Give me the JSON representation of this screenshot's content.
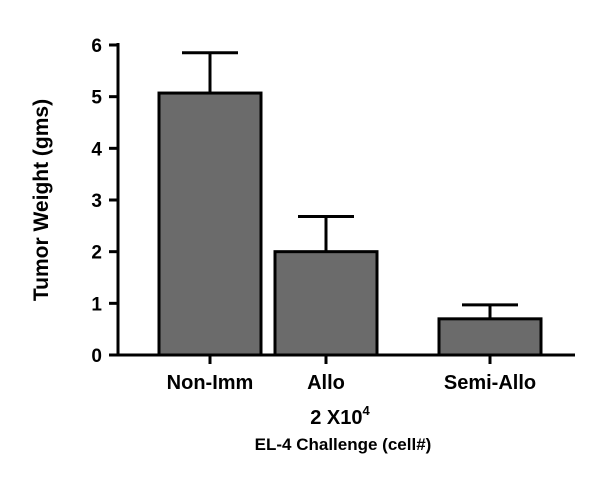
{
  "chart_data": {
    "type": "bar",
    "categories": [
      "Non-Imm",
      "Allo",
      "Semi-Allo"
    ],
    "values": [
      5.07,
      2.0,
      0.7
    ],
    "error_bars_upper": [
      0.78,
      0.68,
      0.27
    ],
    "ylabel": "Tumor Weight (gms)",
    "xlabel_line1_base": "2 X10",
    "xlabel_line1_superscript": "4",
    "xlabel_line2": "EL-4 Challenge (cell#)",
    "ylim": [
      0,
      6
    ],
    "yticks": [
      0,
      1,
      2,
      3,
      4,
      5,
      6
    ],
    "grid": false,
    "colors": {
      "bar_fill": "#6b6b6b",
      "bar_stroke": "#000000",
      "axis": "#000000"
    }
  }
}
